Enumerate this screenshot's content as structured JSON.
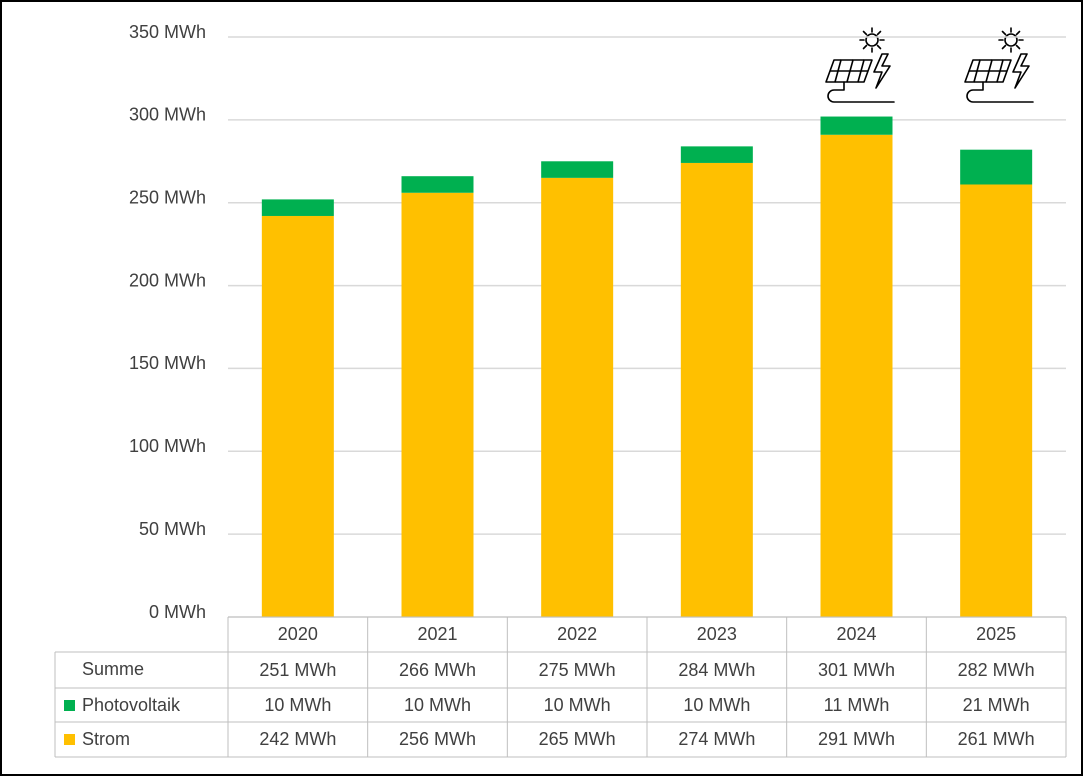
{
  "chart_data": {
    "type": "stacked_bar",
    "categories": [
      "2020",
      "2021",
      "2022",
      "2023",
      "2024",
      "2025"
    ],
    "series": [
      {
        "name": "Strom",
        "color": "#ffc000",
        "values": [
          242,
          256,
          265,
          274,
          291,
          261
        ],
        "value_labels": [
          "242 MWh",
          "256 MWh",
          "265 MWh",
          "274 MWh",
          "291 MWh",
          "261 MWh"
        ]
      },
      {
        "name": "Photovoltaik",
        "color": "#00b050",
        "values": [
          10,
          10,
          10,
          10,
          11,
          21
        ],
        "value_labels": [
          "10 MWh",
          "10 MWh",
          "10 MWh",
          "10 MWh",
          "11 MWh",
          "21 MWh"
        ]
      }
    ],
    "totals": {
      "name": "Summe",
      "values": [
        251,
        266,
        275,
        284,
        301,
        282
      ],
      "value_labels": [
        "251 MWh",
        "266 MWh",
        "275 MWh",
        "284 MWh",
        "301 MWh",
        "282 MWh"
      ]
    },
    "ylim": [
      0,
      350
    ],
    "yticks": [
      {
        "value": 0,
        "label": "0 MWh"
      },
      {
        "value": 50,
        "label": "50 MWh"
      },
      {
        "value": 100,
        "label": "100 MWh"
      },
      {
        "value": 150,
        "label": "150 MWh"
      },
      {
        "value": 200,
        "label": "200 MWh"
      },
      {
        "value": 250,
        "label": "250 MWh"
      },
      {
        "value": 300,
        "label": "300 MWh"
      },
      {
        "value": 350,
        "label": "350 MWh"
      }
    ],
    "grid": true
  }
}
